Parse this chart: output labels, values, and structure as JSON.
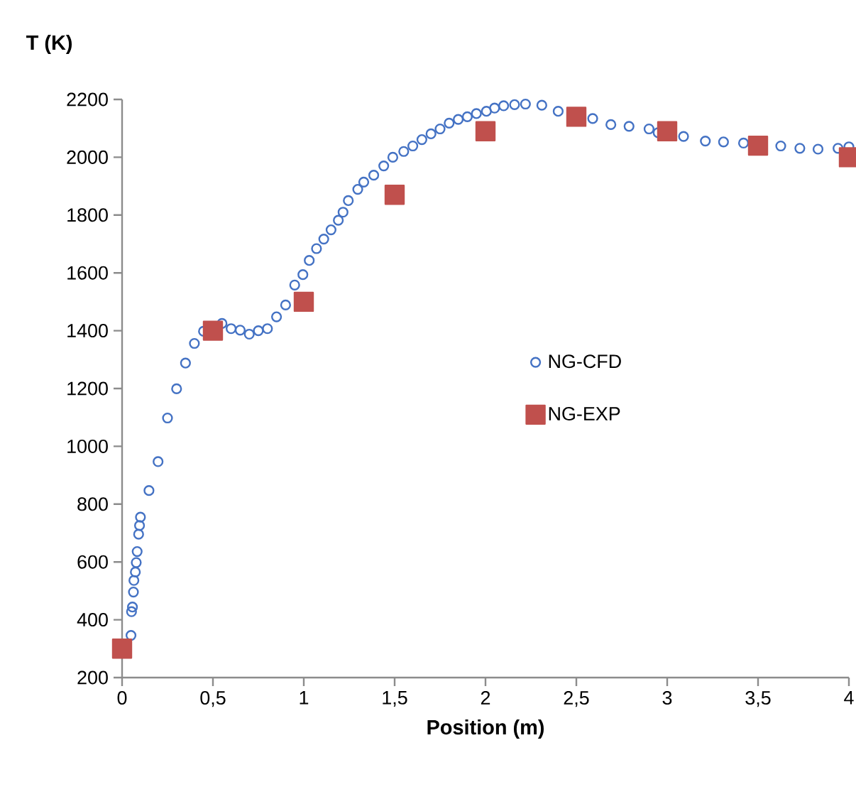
{
  "chart_data": {
    "type": "scatter",
    "xlabel": "Position (m)",
    "ylabel": "T (K)",
    "xlim": [
      0,
      4
    ],
    "ylim": [
      200,
      2200
    ],
    "xticks": [
      0,
      {
        "value": 0.5,
        "label": "0,5"
      },
      1,
      {
        "value": 1.5,
        "label": "1,5"
      },
      2,
      {
        "value": 2.5,
        "label": "2,5"
      },
      3,
      {
        "value": 3.5,
        "label": "3,5"
      },
      4
    ],
    "yticks": [
      200,
      400,
      600,
      800,
      1000,
      1200,
      1400,
      1600,
      1800,
      2000,
      2200
    ],
    "grid": false,
    "legend": "right",
    "series": [
      {
        "name": "NG-CFD",
        "color": "#4472c4",
        "marker": "circle",
        "x": [
          0.049,
          0.052,
          0.057,
          0.0625,
          0.065,
          0.073,
          0.078,
          0.083,
          0.091,
          0.096,
          0.101,
          0.148,
          0.198,
          0.25,
          0.3,
          0.349,
          0.398,
          0.448,
          0.55,
          0.6,
          0.65,
          0.7,
          0.75,
          0.8,
          0.85,
          0.9,
          0.95,
          0.995,
          1.03,
          1.07,
          1.11,
          1.15,
          1.19,
          1.216,
          1.245,
          1.297,
          1.33,
          1.385,
          1.44,
          1.49,
          1.55,
          1.6,
          1.65,
          1.7,
          1.75,
          1.8,
          1.85,
          1.9,
          1.95,
          2.005,
          2.05,
          2.1,
          2.16,
          2.22,
          2.31,
          2.4,
          2.59,
          2.69,
          2.79,
          2.9,
          2.95,
          3.09,
          3.21,
          3.31,
          3.42,
          3.625,
          3.73,
          3.83,
          3.94,
          4.0
        ],
        "values": [
          346,
          428,
          444,
          496,
          536,
          565,
          598,
          636,
          696,
          726,
          755,
          847,
          947,
          1098,
          1199,
          1288,
          1356,
          1398,
          1425,
          1407,
          1402,
          1388,
          1400,
          1407,
          1448,
          1489,
          1558,
          1594,
          1643,
          1684,
          1717,
          1749,
          1782,
          1810,
          1850,
          1889,
          1914,
          1938,
          1970,
          2000,
          2020,
          2039,
          2061,
          2081,
          2098,
          2118,
          2131,
          2140,
          2151,
          2159,
          2170,
          2178,
          2182,
          2184,
          2180,
          2159,
          2134,
          2113,
          2107,
          2098,
          2085,
          2072,
          2056,
          2053,
          2049,
          2039,
          2031,
          2028,
          2031,
          2036
        ]
      },
      {
        "name": "NG-EXP",
        "color": "#c0504d",
        "marker": "square",
        "x": [
          0,
          0.5,
          1,
          1.5,
          2,
          2.5,
          3,
          3.5,
          4
        ],
        "values": [
          300,
          1400,
          1500,
          1870,
          2090,
          2140,
          2090,
          2040,
          2000
        ]
      }
    ]
  }
}
